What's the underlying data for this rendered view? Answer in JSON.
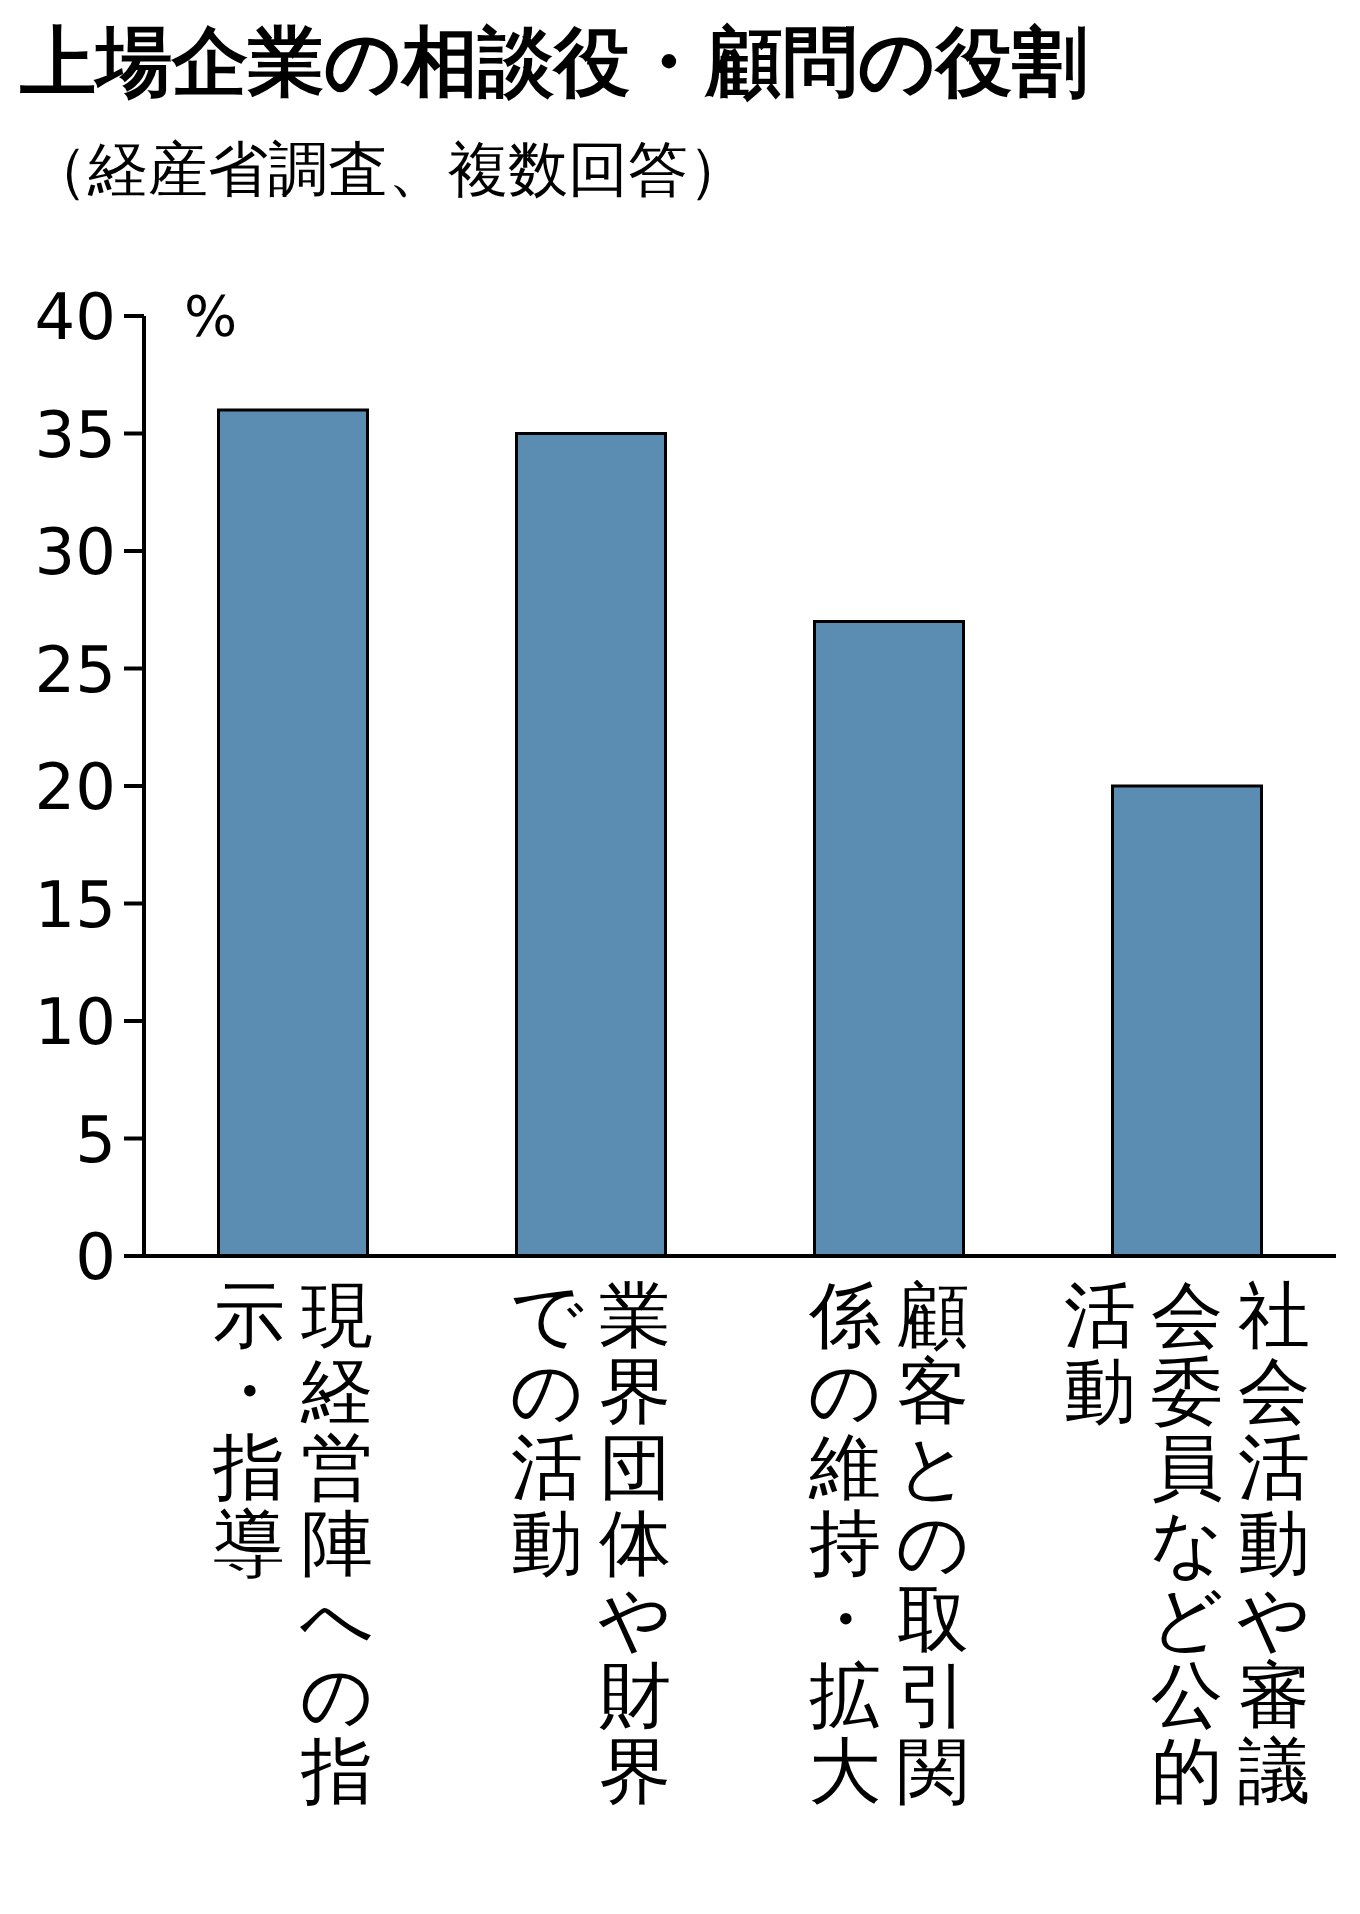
{
  "chart_data": {
    "type": "bar",
    "title": "上場企業の相談役・顧問の役割",
    "subtitle": "（経産省調査、複数回答）",
    "ylabel": "%",
    "categories": [
      "現経営陣への指示・指導",
      "業界団体や財界での活動",
      "顧客との取引関係の維持・拡大",
      "社会活動や審議会委員など公的活動"
    ],
    "values": [
      36,
      35,
      27,
      20
    ],
    "color": "#5b8db3",
    "ylim": [
      0,
      40
    ],
    "yticks": [
      0,
      5,
      10,
      15,
      20,
      25,
      30,
      35,
      40
    ],
    "grid": false,
    "legend": false
  }
}
